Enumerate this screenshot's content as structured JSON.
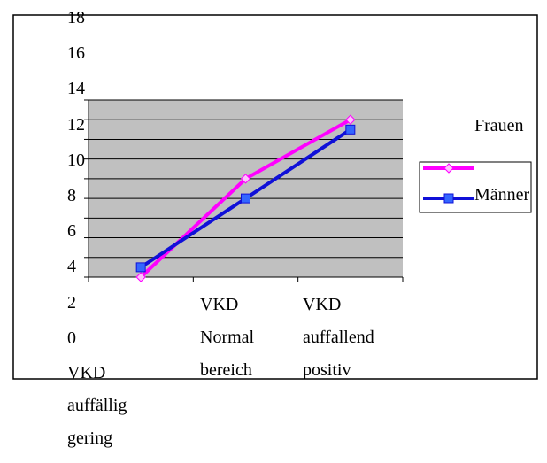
{
  "chart_data": {
    "type": "line",
    "categories": [
      "VKD auffällig gering",
      "VKD Normal bereich",
      "VKD auffallend positiv"
    ],
    "series": [
      {
        "name": "Frauen",
        "color": "#ff00ff",
        "values": [
          0,
          10,
          16
        ]
      },
      {
        "name": "Männer",
        "color": "#1010d8",
        "values": [
          1,
          8,
          15
        ]
      }
    ],
    "ylim": [
      0,
      18
    ],
    "yticks": [
      0,
      2,
      4,
      6,
      8,
      10,
      12,
      14,
      16,
      18
    ],
    "grid": true,
    "legend": "right"
  }
}
